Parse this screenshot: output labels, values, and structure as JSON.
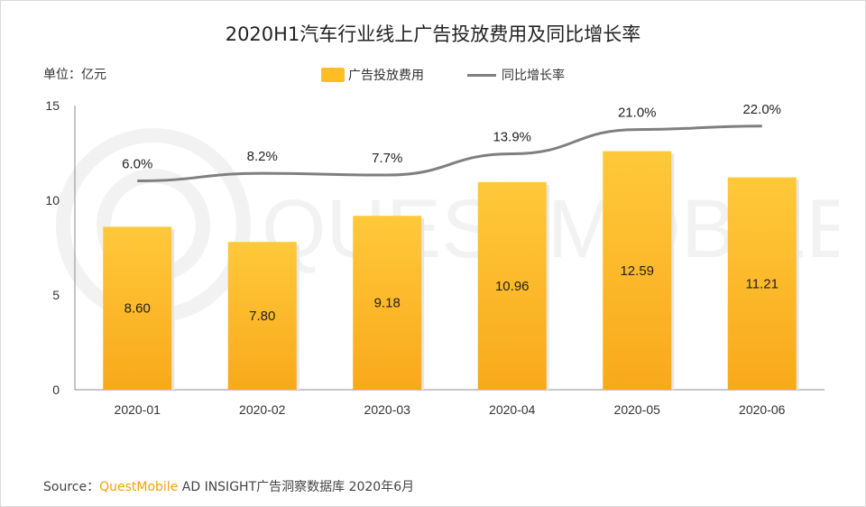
{
  "chart_data": {
    "type": "bar",
    "title": "2020H1汽车行业线上广告投放费用及同比增长率",
    "unit_label": "单位：亿元",
    "categories": [
      "2020-01",
      "2020-02",
      "2020-03",
      "2020-04",
      "2020-05",
      "2020-06"
    ],
    "series": [
      {
        "name": "广告投放费用",
        "type": "bar",
        "values": [
          8.6,
          7.8,
          9.18,
          10.96,
          12.59,
          11.21
        ],
        "value_labels": [
          "8.60",
          "7.80",
          "9.18",
          "10.96",
          "12.59",
          "11.21"
        ]
      },
      {
        "name": "同比增长率",
        "type": "line",
        "values": [
          6.0,
          8.2,
          7.7,
          13.9,
          21.0,
          22.0
        ],
        "value_labels": [
          "6.0%",
          "8.2%",
          "7.7%",
          "13.9%",
          "21.0%",
          "22.0%"
        ]
      }
    ],
    "yticks": [
      "0",
      "5",
      "10",
      "15"
    ],
    "ylim": [
      0,
      15
    ],
    "colors": {
      "bar_top": "#ffc93a",
      "bar_bottom": "#f8a91b",
      "line": "#7f7f7f",
      "brand": "#f5a200"
    }
  },
  "watermark": "QUESTMOBILE",
  "source": {
    "prefix": "Source：",
    "brand": "QuestMobile",
    "rest": "AD INSIGHT广告洞察数据库 2020年6月"
  }
}
